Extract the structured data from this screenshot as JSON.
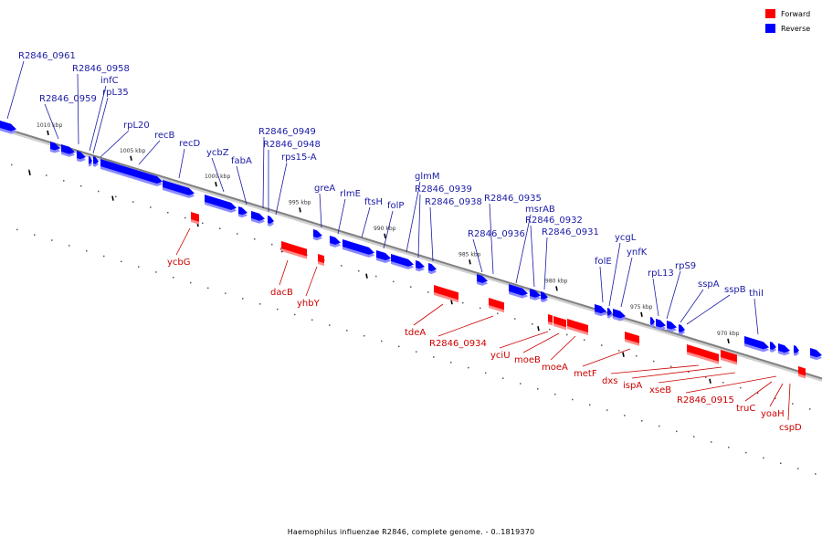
{
  "caption": "Haemophilus influenzae R2846, complete genome. - 0..1819370",
  "legend": {
    "forward": {
      "label": "Forward",
      "color": "#ff0000"
    },
    "reverse": {
      "label": "Reverse",
      "color": "#0000ff"
    }
  },
  "colors": {
    "forward": "#ff0000",
    "reverse": "#0000ff",
    "backbone": "#808080"
  },
  "ticks": [
    {
      "label": "1010 kbp"
    },
    {
      "label": "1005 kbp"
    },
    {
      "label": "1000 kbp"
    },
    {
      "label": "995 kbp"
    },
    {
      "label": "990 kbp"
    },
    {
      "label": "985 kbp"
    },
    {
      "label": "980 kbp"
    },
    {
      "label": "975 kbp"
    },
    {
      "label": "970 kbp"
    }
  ],
  "genes": [
    {
      "name": "R2846_0961",
      "strand": "reverse"
    },
    {
      "name": "R2846_0959",
      "strand": "reverse"
    },
    {
      "name": "R2846_0958",
      "strand": "reverse"
    },
    {
      "name": "infC",
      "strand": "reverse"
    },
    {
      "name": "rpL35",
      "strand": "reverse"
    },
    {
      "name": "rpL20",
      "strand": "reverse"
    },
    {
      "name": "recB",
      "strand": "reverse"
    },
    {
      "name": "recD",
      "strand": "reverse"
    },
    {
      "name": "ycbZ",
      "strand": "reverse"
    },
    {
      "name": "fabA",
      "strand": "reverse"
    },
    {
      "name": "R2846_0949",
      "strand": "reverse"
    },
    {
      "name": "R2846_0948",
      "strand": "reverse"
    },
    {
      "name": "rps15-A",
      "strand": "reverse"
    },
    {
      "name": "greA",
      "strand": "reverse"
    },
    {
      "name": "rlmE",
      "strand": "reverse"
    },
    {
      "name": "ftsH",
      "strand": "reverse"
    },
    {
      "name": "folP",
      "strand": "reverse"
    },
    {
      "name": "glmM",
      "strand": "reverse"
    },
    {
      "name": "R2846_0939",
      "strand": "reverse"
    },
    {
      "name": "R2846_0938",
      "strand": "reverse"
    },
    {
      "name": "R2846_0936",
      "strand": "reverse"
    },
    {
      "name": "R2846_0935",
      "strand": "reverse"
    },
    {
      "name": "msrAB",
      "strand": "reverse"
    },
    {
      "name": "R2846_0932",
      "strand": "reverse"
    },
    {
      "name": "R2846_0931",
      "strand": "reverse"
    },
    {
      "name": "folE",
      "strand": "reverse"
    },
    {
      "name": "ycgL",
      "strand": "reverse"
    },
    {
      "name": "ynfK",
      "strand": "reverse"
    },
    {
      "name": "rpL13",
      "strand": "reverse"
    },
    {
      "name": "rpS9",
      "strand": "reverse"
    },
    {
      "name": "sspA",
      "strand": "reverse"
    },
    {
      "name": "sspB",
      "strand": "reverse"
    },
    {
      "name": "thiI",
      "strand": "reverse"
    },
    {
      "name": "ycbG",
      "strand": "forward"
    },
    {
      "name": "dacB",
      "strand": "forward"
    },
    {
      "name": "yhbY",
      "strand": "forward"
    },
    {
      "name": "tdeA",
      "strand": "forward"
    },
    {
      "name": "R2846_0934",
      "strand": "forward"
    },
    {
      "name": "yciU",
      "strand": "forward"
    },
    {
      "name": "moeB",
      "strand": "forward"
    },
    {
      "name": "moeA",
      "strand": "forward"
    },
    {
      "name": "metF",
      "strand": "forward"
    },
    {
      "name": "dxs",
      "strand": "forward"
    },
    {
      "name": "ispA",
      "strand": "forward"
    },
    {
      "name": "xseB",
      "strand": "forward"
    },
    {
      "name": "R2846_0915",
      "strand": "forward"
    },
    {
      "name": "truC",
      "strand": "forward"
    },
    {
      "name": "yoaH",
      "strand": "forward"
    },
    {
      "name": "cspD",
      "strand": "forward"
    }
  ]
}
